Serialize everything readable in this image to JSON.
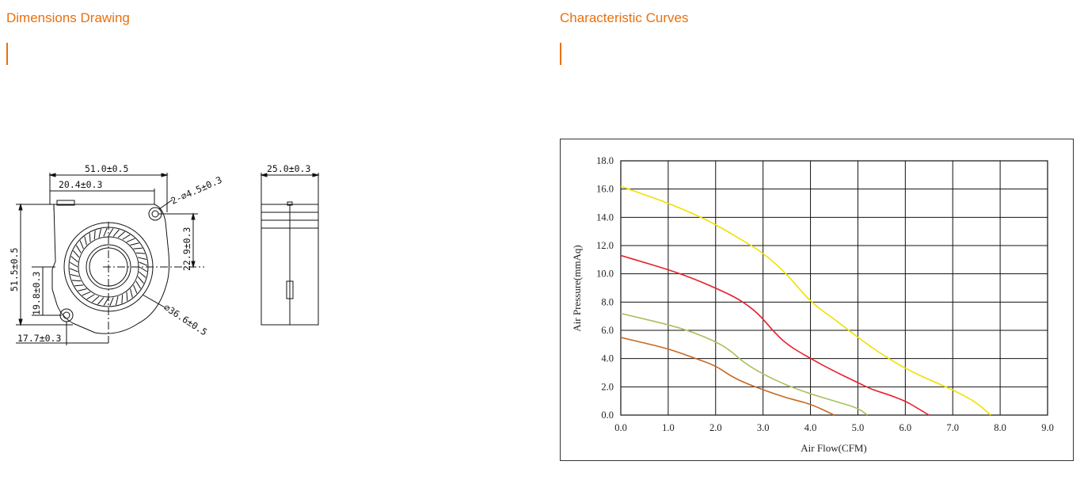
{
  "sections": {
    "left_title": "Dimensions Drawing",
    "right_title": "Characteristic Curves"
  },
  "drawing": {
    "front_view": {
      "width": "51.0±0.5",
      "offset_top": "20.4±0.3",
      "hole": "2-⌀4.5±0.3",
      "hole_spacing_v": "22.9±0.3",
      "height": "51.5±0.5",
      "hole_offset_v": "19.8±0.3",
      "hole_offset_h": "17.7±0.3",
      "impeller": "⌀36.6±0.5"
    },
    "side_view": {
      "depth": "25.0±0.3"
    }
  },
  "colors": {
    "accent": "#e8700f",
    "grid": "#111111"
  },
  "chart_data": {
    "type": "line",
    "title": "",
    "xlabel": "Air Flow(CFM)",
    "ylabel": "Air Pressure(mmAq)",
    "xlim": [
      0,
      9
    ],
    "ylim": [
      0,
      18
    ],
    "xticks": [
      "0.0",
      "1.0",
      "2.0",
      "3.0",
      "4.0",
      "5.0",
      "6.0",
      "7.0",
      "8.0",
      "9.0"
    ],
    "yticks": [
      "0.0",
      "2.0",
      "4.0",
      "6.0",
      "8.0",
      "10.0",
      "12.0",
      "14.0",
      "16.0",
      "18.0"
    ],
    "grid": true,
    "series": [
      {
        "color": "#f0e000",
        "points": [
          [
            0,
            16.2
          ],
          [
            0.5,
            15.6
          ],
          [
            1.0,
            15.0
          ],
          [
            1.5,
            14.3
          ],
          [
            2.0,
            13.5
          ],
          [
            2.5,
            12.5
          ],
          [
            3.0,
            11.5
          ],
          [
            3.5,
            10.0
          ],
          [
            4.0,
            8.0
          ],
          [
            4.5,
            6.8
          ],
          [
            5.0,
            5.5
          ],
          [
            5.5,
            4.3
          ],
          [
            6.0,
            3.3
          ],
          [
            6.5,
            2.5
          ],
          [
            7.0,
            1.8
          ],
          [
            7.5,
            0.9
          ],
          [
            7.8,
            0.0
          ]
        ]
      },
      {
        "color": "#e8202a",
        "points": [
          [
            0,
            11.3
          ],
          [
            0.5,
            10.8
          ],
          [
            1.0,
            10.3
          ],
          [
            1.5,
            9.7
          ],
          [
            2.0,
            9.0
          ],
          [
            2.5,
            8.2
          ],
          [
            2.9,
            7.2
          ],
          [
            3.2,
            6.0
          ],
          [
            3.5,
            5.0
          ],
          [
            4.0,
            4.0
          ],
          [
            4.5,
            3.1
          ],
          [
            5.0,
            2.3
          ],
          [
            5.3,
            1.8
          ],
          [
            5.6,
            1.5
          ],
          [
            6.0,
            1.0
          ],
          [
            6.25,
            0.5
          ],
          [
            6.5,
            0.0
          ]
        ]
      },
      {
        "color": "#a8c060",
        "points": [
          [
            0,
            7.2
          ],
          [
            0.5,
            6.8
          ],
          [
            1.0,
            6.4
          ],
          [
            1.5,
            5.9
          ],
          [
            2.0,
            5.2
          ],
          [
            2.3,
            4.6
          ],
          [
            2.6,
            3.7
          ],
          [
            3.0,
            2.9
          ],
          [
            3.5,
            2.1
          ],
          [
            4.0,
            1.5
          ],
          [
            4.5,
            1.0
          ],
          [
            5.0,
            0.5
          ],
          [
            5.2,
            0.0
          ]
        ]
      },
      {
        "color": "#c86820",
        "points": [
          [
            0,
            5.5
          ],
          [
            0.5,
            5.1
          ],
          [
            1.0,
            4.7
          ],
          [
            1.5,
            4.1
          ],
          [
            2.0,
            3.5
          ],
          [
            2.3,
            2.8
          ],
          [
            2.6,
            2.3
          ],
          [
            3.0,
            1.8
          ],
          [
            3.5,
            1.2
          ],
          [
            4.0,
            0.8
          ],
          [
            4.5,
            0.0
          ]
        ]
      }
    ]
  }
}
